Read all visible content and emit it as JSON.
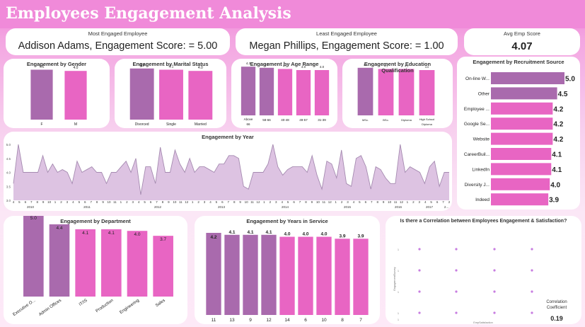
{
  "header": {
    "title": "Employees Engagement Analysis"
  },
  "kpis": {
    "most": {
      "label": "Most Engaged Employee",
      "value": "Addison Adams, Engagement Score: = 5.00"
    },
    "least": {
      "label": "Least Engaged Employee",
      "value": "Megan Phillips, Engagement Score: = 1.00"
    },
    "avg": {
      "label": "Avg Emp Score",
      "value": "4.07"
    }
  },
  "colors": {
    "purple": "#a96aad",
    "pink": "#e865c3",
    "area_fill": "#ddc3e2",
    "area_line": "#a58ab0",
    "dot": "#c77ce0",
    "header": "#f08ad9"
  },
  "chart_data": [
    {
      "id": "gender",
      "type": "bar",
      "title": "Engagement by Gender",
      "categories": [
        "F",
        "M"
      ],
      "values": [
        4.1,
        4.0
      ],
      "value_labels": [
        "4.1",
        "4.0"
      ],
      "ylim": [
        0,
        5
      ]
    },
    {
      "id": "marital",
      "type": "bar",
      "title": "Engagement by Marital Status",
      "categories": [
        "Divorced",
        "Single",
        "Married"
      ],
      "values": [
        4.2,
        4.1,
        4.0
      ],
      "value_labels": [
        "4.2",
        "4.1",
        "4.0"
      ],
      "ylim": [
        0,
        5
      ]
    },
    {
      "id": "age",
      "type": "bar",
      "title": "Engagement by Age Range",
      "categories": [
        "Above 66",
        "58-66",
        "40-48",
        "49-57",
        "31-39"
      ],
      "values": [
        4.3,
        4.2,
        4.1,
        4.0,
        4.0
      ],
      "value_labels": [
        "4.3",
        "4.2",
        "4.1",
        "4.0",
        "4.0"
      ],
      "ylim": [
        0,
        5
      ]
    },
    {
      "id": "education",
      "type": "bar",
      "title": "Engagement by Education Qualification",
      "categories": [
        "MSc.",
        "BSc.",
        "Diploma",
        "High School Diploma"
      ],
      "values": [
        4.2,
        4.1,
        4.1,
        4.0
      ],
      "value_labels": [
        "4.2",
        "4.1",
        "4.1",
        "4.0"
      ],
      "ylim": [
        0,
        5
      ]
    },
    {
      "id": "recruitment",
      "type": "bar",
      "orientation": "horizontal",
      "title": "Engagement by Recruitment Source",
      "categories": [
        "On-line W...",
        "Other",
        "Employee ...",
        "Google Se...",
        "Website",
        "CareerBuil...",
        "LinkedIn",
        "Diversity J...",
        "Indeed"
      ],
      "values": [
        5.0,
        4.5,
        4.2,
        4.2,
        4.2,
        4.1,
        4.1,
        4.0,
        3.9
      ],
      "value_labels": [
        "5.0",
        "4.5",
        "4.2",
        "4.2",
        "4.2",
        "4.1",
        "4.1",
        "4.0",
        "3.9"
      ],
      "xlim": [
        0,
        5
      ]
    },
    {
      "id": "year",
      "type": "area",
      "title": "Engagement by Year",
      "y_ticks": [
        "3.0",
        "3.5",
        "4.0",
        "4.5",
        "5.0"
      ],
      "ylim": [
        3.0,
        5.0
      ],
      "x_month_ticks": [
        "4",
        "5",
        "6",
        "7",
        "8",
        "9",
        "10",
        "1",
        "2",
        "3",
        "4",
        "5",
        "6",
        "7",
        "8",
        "9",
        "10",
        "11",
        "1",
        "2",
        "3",
        "4",
        "5",
        "6",
        "7",
        "8",
        "9",
        "10",
        "11",
        "12",
        "1",
        "2",
        "3",
        "4",
        "5",
        "6",
        "7",
        "8",
        "9",
        "10",
        "11",
        "12",
        "1",
        "2",
        "3",
        "4",
        "5",
        "6",
        "7",
        "8",
        "9",
        "10",
        "11",
        "12",
        "1",
        "2",
        "3",
        "4",
        "5",
        "6",
        "7",
        "8",
        "9",
        "10",
        "11",
        "12",
        "1",
        "2",
        "3",
        "4",
        "5",
        "6",
        "7",
        "2"
      ],
      "x_year_labels": [
        "2010",
        "2011",
        "2012",
        "2013",
        "2014",
        "2015",
        "2016",
        "2017",
        "2..."
      ],
      "values": [
        3.6,
        5.0,
        4.0,
        4.0,
        4.0,
        4.0,
        4.6,
        4.0,
        4.3,
        4.0,
        4.1,
        4.0,
        3.6,
        4.4,
        4.0,
        4.1,
        4.2,
        4.0,
        4.0,
        3.6,
        4.0,
        4.0,
        4.2,
        4.4,
        4.0,
        4.5,
        3.2,
        4.2,
        4.2,
        3.6,
        4.9,
        4.0,
        4.0,
        4.8,
        4.3,
        4.0,
        4.5,
        4.0,
        4.2,
        4.2,
        4.1,
        4.0,
        4.3,
        4.3,
        4.6,
        4.6,
        4.5,
        3.5,
        3.4,
        4.0,
        4.0,
        4.0,
        4.3,
        5.0,
        4.2,
        3.9,
        4.1,
        4.2,
        4.2,
        4.2,
        4.0,
        4.6,
        3.9,
        3.4,
        4.4,
        4.3,
        3.8,
        4.8,
        3.6,
        3.5,
        4.5,
        4.6,
        4.2,
        3.4,
        4.2,
        4.1,
        3.8,
        3.6,
        3.6,
        5.0,
        4.0,
        4.2,
        4.1,
        4.0,
        3.6,
        4.2,
        4.4,
        3.5,
        4.0,
        4.0
      ]
    },
    {
      "id": "department",
      "type": "bar",
      "title": "Engagement by Department",
      "categories": [
        "Executive O...",
        "Admin Offices",
        "IT/IS",
        "Production",
        "Engineering",
        "Sales"
      ],
      "values": [
        5.0,
        4.4,
        4.1,
        4.1,
        4.0,
        3.7
      ],
      "value_labels": [
        "5.0",
        "4.4",
        "4.1",
        "4.1",
        "4.0",
        "3.7"
      ],
      "ylim": [
        0,
        5
      ]
    },
    {
      "id": "service",
      "type": "bar",
      "title": "Engagement by Years in Service",
      "categories": [
        "11",
        "13",
        "9",
        "12",
        "14",
        "6",
        "10",
        "8",
        "7"
      ],
      "values": [
        4.2,
        4.1,
        4.1,
        4.1,
        4.0,
        4.0,
        4.0,
        3.9,
        3.9
      ],
      "value_labels": [
        "4.2",
        "4.1",
        "4.1",
        "4.1",
        "4.0",
        "4.0",
        "4.0",
        "3.9",
        "3.9"
      ],
      "ylim": [
        0,
        4.3
      ]
    },
    {
      "id": "correlation",
      "type": "scatter",
      "title": "Is there a Correlation between Employees Engagement & Satisfaction?",
      "xlabel": "EmpSatisfaction",
      "ylabel": "EngagementSurvey",
      "x_levels": [
        1,
        2,
        3,
        4,
        5
      ],
      "y_levels": [
        1,
        2,
        3,
        4,
        5
      ],
      "points": [
        [
          2,
          4
        ],
        [
          3,
          4
        ],
        [
          4,
          4
        ],
        [
          5,
          4
        ],
        [
          2,
          3
        ],
        [
          3,
          3
        ],
        [
          4,
          3
        ],
        [
          5,
          3
        ],
        [
          2,
          2
        ],
        [
          3,
          2
        ],
        [
          4,
          2
        ],
        [
          5,
          2
        ],
        [
          2,
          1
        ],
        [
          3,
          1
        ],
        [
          4,
          1
        ],
        [
          5,
          1
        ]
      ],
      "annotation_label": "Correlation Coefficient",
      "annotation_value": "0.19"
    }
  ]
}
